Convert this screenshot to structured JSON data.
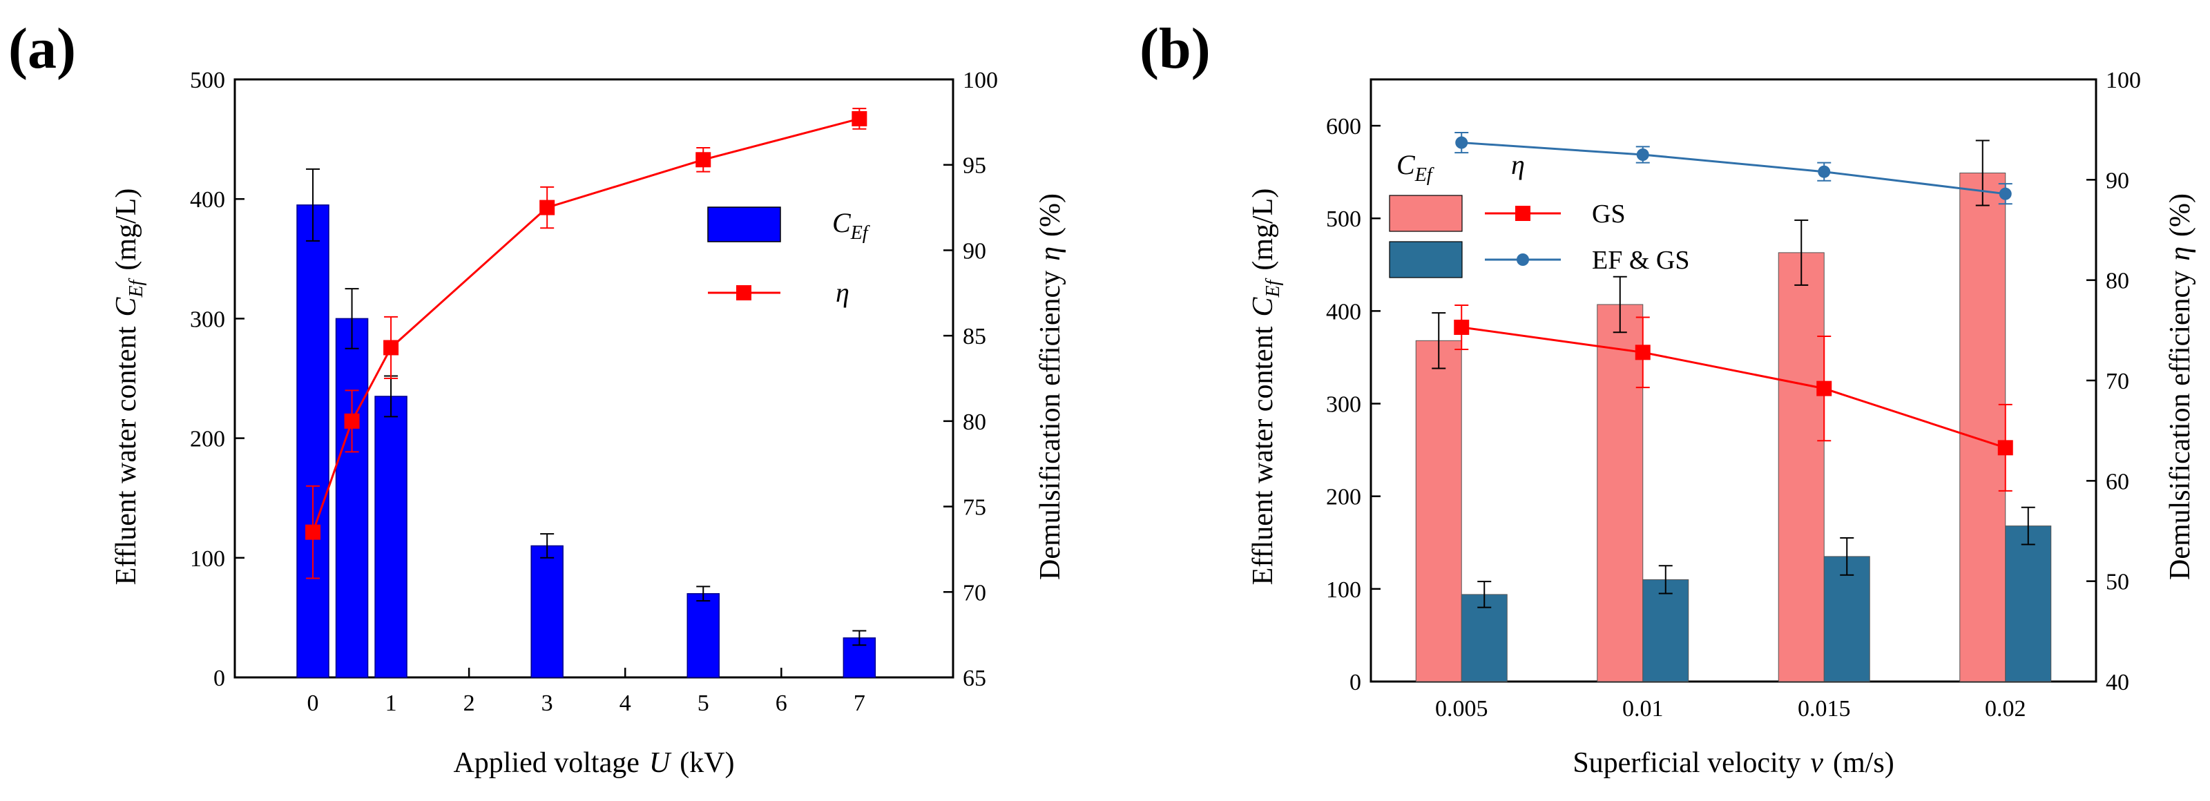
{
  "chart_data": [
    {
      "type": "bar+line",
      "panel_label": "(a)",
      "x_categories": [
        "0",
        "1",
        "2",
        "3",
        "4",
        "5",
        "6",
        "7"
      ],
      "xlabel": {
        "text": "Applied voltage",
        "symbol": "U",
        "unit": "(kV)"
      },
      "ylabel_left": {
        "text": "Effluent water content",
        "symbol": "C",
        "subscript": "Ef",
        "unit": "(mg/L)"
      },
      "ylabel_right": {
        "text": "Demulsification efficiency",
        "symbol": "η",
        "unit": "(%)"
      },
      "xlim": [
        -1,
        8.2
      ],
      "ylim_left": [
        0,
        500
      ],
      "ylim_right": [
        65,
        100
      ],
      "yticks_left": [
        "0",
        "100",
        "200",
        "300",
        "400",
        "500"
      ],
      "yticks_right": [
        "65",
        "70",
        "75",
        "80",
        "85",
        "90",
        "95",
        "100"
      ],
      "bar_color": "#0000ff",
      "line_color": "#ff0000",
      "bars": [
        {
          "x": 0,
          "value": 395,
          "err": 30
        },
        {
          "x": 0.5,
          "value": 300,
          "err": 25
        },
        {
          "x": 1,
          "value": 235,
          "err": 17
        },
        {
          "x": 3,
          "value": 110,
          "err": 10
        },
        {
          "x": 5,
          "value": 70,
          "err": 6
        },
        {
          "x": 7,
          "value": 33,
          "err": 6
        }
      ],
      "line": [
        {
          "x": 0,
          "value": 73.5,
          "err": 2.7
        },
        {
          "x": 0.5,
          "value": 80,
          "err": 1.8
        },
        {
          "x": 1,
          "value": 84.3,
          "err": 1.8
        },
        {
          "x": 3,
          "value": 92.5,
          "err": 1.2
        },
        {
          "x": 5,
          "value": 95.3,
          "err": 0.7
        },
        {
          "x": 7,
          "value": 97.7,
          "err": 0.6
        }
      ],
      "legend": [
        {
          "symbol": "C",
          "subscript": "Ef",
          "style": "bar"
        },
        {
          "symbol": "η",
          "style": "line"
        }
      ]
    },
    {
      "type": "grouped-bar+line",
      "panel_label": "(b)",
      "categories": [
        "0.005",
        "0.01",
        "0.015",
        "0.02"
      ],
      "xlabel": {
        "text": "Superficial velocity",
        "symbol": "v",
        "unit": "(m/s)"
      },
      "ylabel_left": {
        "text": "Effluent water content",
        "symbol": "C",
        "subscript": "Ef",
        "unit": "(mg/L)"
      },
      "ylabel_right": {
        "text": "Demulsification efficiency",
        "symbol": "η",
        "unit": "(%)"
      },
      "ylim_left": [
        0,
        650
      ],
      "ylim_right": [
        40,
        100
      ],
      "yticks_left": [
        "0",
        "100",
        "200",
        "300",
        "400",
        "500",
        "600"
      ],
      "yticks_right": [
        "40",
        "50",
        "60",
        "70",
        "80",
        "90",
        "100"
      ],
      "series": [
        {
          "name": "GS",
          "bar_color": "#f88080",
          "line_color": "#ff0000",
          "bar_values": [
            368,
            407,
            463,
            549
          ],
          "bar_err": [
            30,
            30,
            35,
            35
          ],
          "line_values": [
            75.3,
            72.8,
            69.2,
            63.3
          ],
          "line_err": [
            2.2,
            3.5,
            5.2,
            4.3
          ]
        },
        {
          "name": "EF & GS",
          "bar_color": "#2a6f97",
          "line_color": "#2f70aa",
          "bar_values": [
            94,
            110,
            135,
            168
          ],
          "bar_err": [
            14,
            15,
            20,
            20
          ],
          "line_values": [
            93.7,
            92.5,
            90.8,
            88.6
          ],
          "line_err": [
            1.0,
            0.8,
            0.9,
            1.0
          ]
        }
      ],
      "legend_headers": [
        {
          "symbol": "C",
          "subscript": "Ef"
        },
        {
          "symbol": "η"
        }
      ]
    }
  ]
}
